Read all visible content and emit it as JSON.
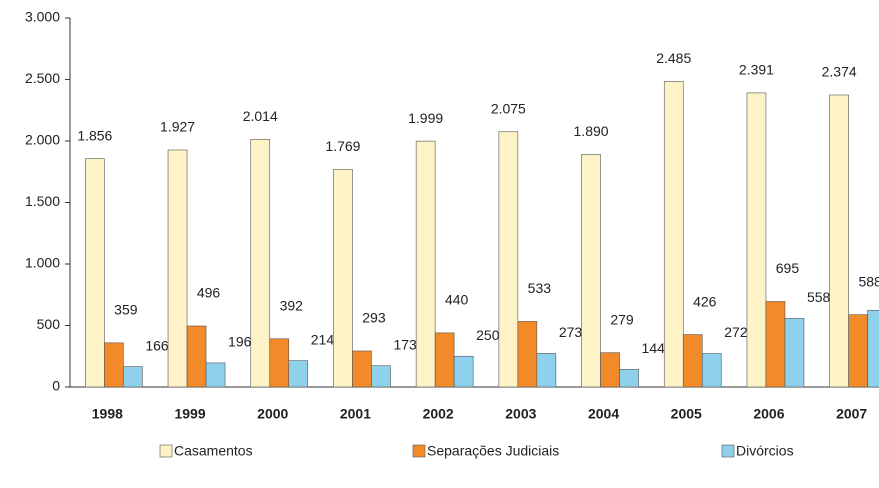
{
  "chart_data": {
    "type": "bar",
    "categories": [
      "1998",
      "1999",
      "2000",
      "2001",
      "2002",
      "2003",
      "2004",
      "2005",
      "2006",
      "2007"
    ],
    "series": [
      {
        "name": "Casamentos",
        "color": "#fdf3c6",
        "values": [
          1856,
          1927,
          2014,
          1769,
          1999,
          2075,
          1890,
          2485,
          2391,
          2374
        ],
        "value_labels": [
          "1.856",
          "1.927",
          "2.014",
          "1.769",
          "1.999",
          "2.075",
          "1.890",
          "2.485",
          "2.391",
          "2.374"
        ]
      },
      {
        "name": "Separações Judiciais",
        "color": "#f28a2a",
        "values": [
          359,
          496,
          392,
          293,
          440,
          533,
          279,
          426,
          695,
          588
        ]
      },
      {
        "name": "Divórcios",
        "color": "#8fd0ec",
        "values": [
          166,
          196,
          214,
          173,
          250,
          273,
          144,
          272,
          558,
          624
        ]
      }
    ],
    "ylim": [
      0,
      3000
    ],
    "yticks": [
      0,
      500,
      {
        "value": 1000,
        "label": "1.000"
      },
      {
        "value": 1500,
        "label": "1.500"
      },
      {
        "value": 2000,
        "label": "2.000"
      },
      {
        "value": 2500,
        "label": "2.500"
      },
      {
        "value": 3000,
        "label": "3.000"
      }
    ],
    "grid": false,
    "legend": "bottom"
  }
}
